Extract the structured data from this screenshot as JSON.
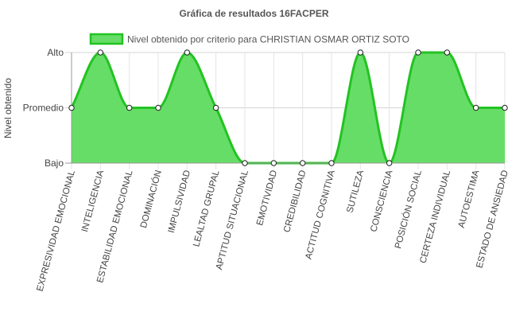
{
  "chart_data": {
    "type": "line",
    "title": "Gráfica de resultados 16FACPER",
    "ylabel": "Nivel obtenido",
    "xlabel": "",
    "y_levels": [
      "Bajo",
      "Promedio",
      "Alto"
    ],
    "ylim": [
      0,
      2
    ],
    "grid": true,
    "legend_position": "top",
    "categories": [
      "EXPRESIVIDAD EMOCIONAL",
      "INTELIGENCIA",
      "ESTABILIDAD EMOCIONAL",
      "DOMINACIÓN",
      "IMPULSIVIDAD",
      "LEALTAD GRUPAL",
      "APTITUD SITUACIONAL",
      "EMOTIVIDAD",
      "CREDIBILIDAD",
      "ACTITUD COGNITIVA",
      "SUTILEZA",
      "CONSCIENCIA",
      "POSICIÓN SOCIAL",
      "CERTEZA INDIVIDUAL",
      "AUTOESTIMA",
      "ESTADO DE ANSIEDAD"
    ],
    "series": [
      {
        "name": "Nivel obtenido por criterio para CHRISTIAN OSMAR ORTIZ SOTO",
        "values": [
          1,
          2,
          1,
          1,
          2,
          1,
          0,
          0,
          0,
          0,
          2,
          0,
          2,
          2,
          1,
          1
        ],
        "color": "#22c322",
        "fill": "#66dd66"
      }
    ]
  }
}
